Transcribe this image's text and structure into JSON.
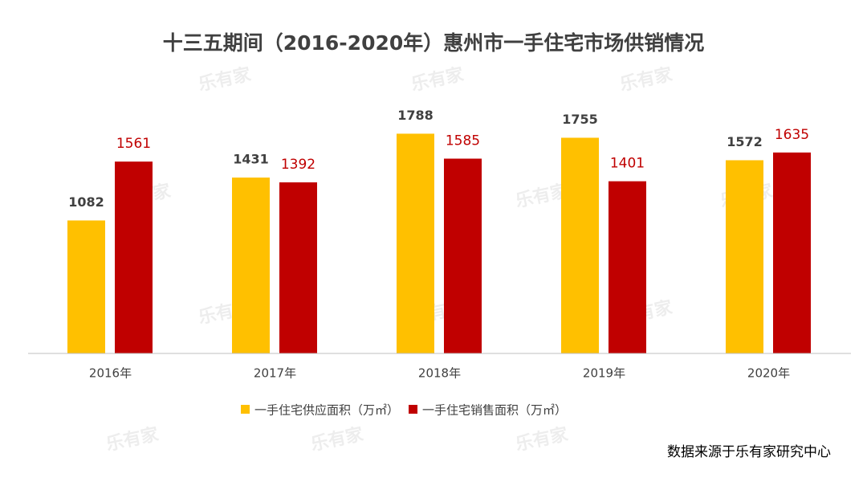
{
  "chart_data": {
    "type": "bar",
    "title": "十三五期间（2016-2020年）惠州市一手住宅市场供销情况",
    "categories": [
      "2016年",
      "2017年",
      "2018年",
      "2019年",
      "2020年"
    ],
    "series": [
      {
        "name": "一手住宅供应面积（万㎡）",
        "color": "#FFC000",
        "values": [
          1082,
          1431,
          1788,
          1755,
          1572
        ]
      },
      {
        "name": "一手住宅销售面积（万㎡）",
        "color": "#C00000",
        "values": [
          1561,
          1392,
          1585,
          1401,
          1635
        ]
      }
    ],
    "ylim": [
      0,
      2000
    ],
    "legend": "bottom",
    "source": "数据来源于乐有家研究中心",
    "watermark": "乐有家"
  }
}
